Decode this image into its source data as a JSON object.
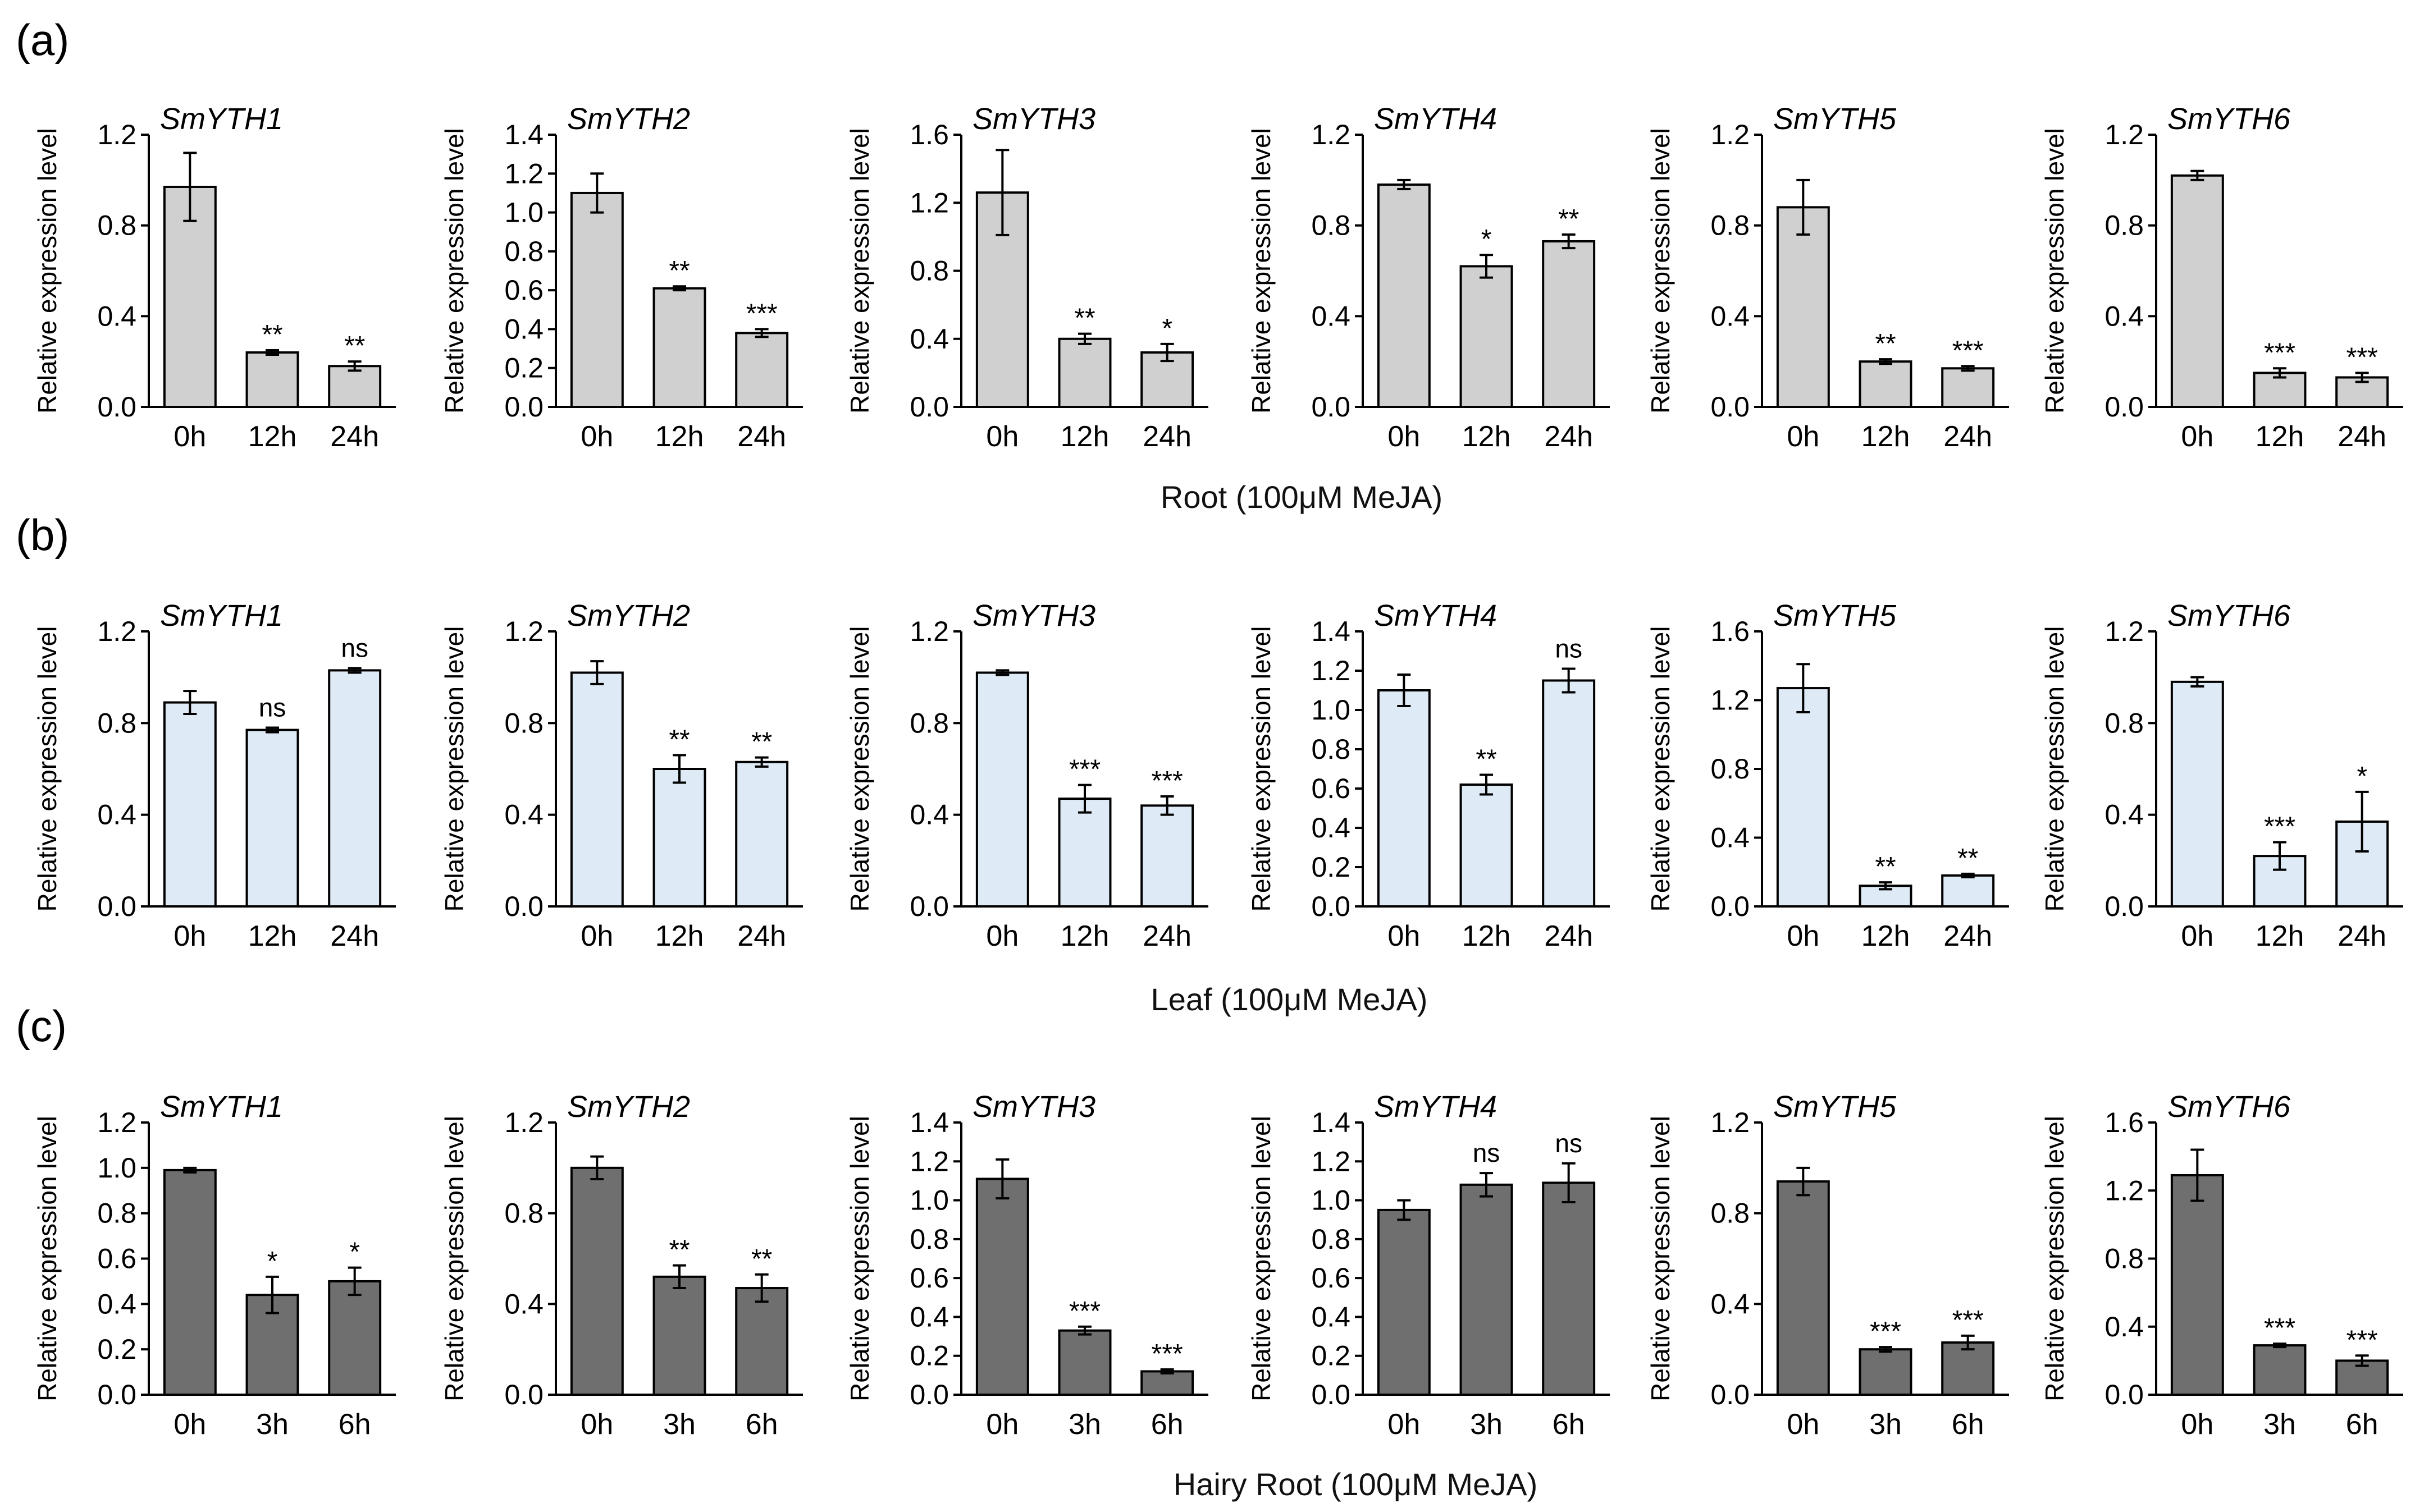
{
  "colors": {
    "root": "#d0d0d0",
    "leaf": "#deeaf5",
    "hairy": "#6f6f6f"
  },
  "panels": [
    {
      "letter": "(a)",
      "caption": "Root (100μM MeJA)",
      "color": "#d0d0d0",
      "categories": [
        "0h",
        "12h",
        "24h"
      ]
    },
    {
      "letter": "(b)",
      "caption": "Leaf (100μM MeJA)",
      "color": "#deeaf5",
      "categories": [
        "0h",
        "12h",
        "24h"
      ]
    },
    {
      "letter": "(c)",
      "caption": "Hairy Root (100μM MeJA)",
      "color": "#6f6f6f",
      "categories": [
        "0h",
        "3h",
        "6h"
      ]
    }
  ],
  "chart_data": [
    {
      "type": "bar",
      "panel": "a",
      "title": "SmYTH1",
      "ylabel": "Relative expression level",
      "xlabel": "Root (100μM MeJA)",
      "categories": [
        "0h",
        "12h",
        "24h"
      ],
      "values": [
        0.97,
        0.24,
        0.18
      ],
      "errors": [
        0.15,
        0.01,
        0.02
      ],
      "significance": [
        "",
        "**",
        "**"
      ],
      "ylim": [
        0,
        1.2
      ],
      "yticks": [
        "0.0",
        "0.4",
        "0.8",
        "1.2"
      ]
    },
    {
      "type": "bar",
      "panel": "a",
      "title": "SmYTH2",
      "ylabel": "Relative expression level",
      "xlabel": "Root (100μM MeJA)",
      "categories": [
        "0h",
        "12h",
        "24h"
      ],
      "values": [
        1.1,
        0.61,
        0.38
      ],
      "errors": [
        0.1,
        0.01,
        0.02
      ],
      "significance": [
        "",
        "**",
        "***"
      ],
      "ylim": [
        0,
        1.4
      ],
      "yticks": [
        "0.0",
        "0.2",
        "0.4",
        "0.6",
        "0.8",
        "1.0",
        "1.2",
        "1.4"
      ]
    },
    {
      "type": "bar",
      "panel": "a",
      "title": "SmYTH3",
      "ylabel": "Relative expression level",
      "xlabel": "Root (100μM MeJA)",
      "categories": [
        "0h",
        "12h",
        "24h"
      ],
      "values": [
        1.26,
        0.4,
        0.32
      ],
      "errors": [
        0.25,
        0.03,
        0.05
      ],
      "significance": [
        "",
        "**",
        "*"
      ],
      "ylim": [
        0,
        1.6
      ],
      "yticks": [
        "0.0",
        "0.4",
        "0.8",
        "1.2",
        "1.6"
      ]
    },
    {
      "type": "bar",
      "panel": "a",
      "title": "SmYTH4",
      "ylabel": "Relative expression level",
      "xlabel": "Root (100μM MeJA)",
      "categories": [
        "0h",
        "12h",
        "24h"
      ],
      "values": [
        0.98,
        0.62,
        0.73
      ],
      "errors": [
        0.02,
        0.05,
        0.03
      ],
      "significance": [
        "",
        "*",
        "**"
      ],
      "ylim": [
        0,
        1.2
      ],
      "yticks": [
        "0.0",
        "0.4",
        "0.8",
        "1.2"
      ]
    },
    {
      "type": "bar",
      "panel": "a",
      "title": "SmYTH5",
      "ylabel": "Relative expression level",
      "xlabel": "Root (100μM MeJA)",
      "categories": [
        "0h",
        "12h",
        "24h"
      ],
      "values": [
        0.88,
        0.2,
        0.17
      ],
      "errors": [
        0.12,
        0.01,
        0.01
      ],
      "significance": [
        "",
        "**",
        "***"
      ],
      "ylim": [
        0,
        1.2
      ],
      "yticks": [
        "0.0",
        "0.4",
        "0.8",
        "1.2"
      ]
    },
    {
      "type": "bar",
      "panel": "a",
      "title": "SmYTH6",
      "ylabel": "Relative expression level",
      "xlabel": "Root (100μM MeJA)",
      "categories": [
        "0h",
        "12h",
        "24h"
      ],
      "values": [
        1.02,
        0.15,
        0.13
      ],
      "errors": [
        0.02,
        0.02,
        0.02
      ],
      "significance": [
        "",
        "***",
        "***"
      ],
      "ylim": [
        0,
        1.2
      ],
      "yticks": [
        "0.0",
        "0.4",
        "0.8",
        "1.2"
      ]
    },
    {
      "type": "bar",
      "panel": "b",
      "title": "SmYTH1",
      "ylabel": "Relative expression level",
      "xlabel": "Leaf (100μM MeJA)",
      "categories": [
        "0h",
        "12h",
        "24h"
      ],
      "values": [
        0.89,
        0.77,
        1.03
      ],
      "errors": [
        0.05,
        0.01,
        0.01
      ],
      "significance": [
        "",
        "ns",
        "ns"
      ],
      "ylim": [
        0,
        1.2
      ],
      "yticks": [
        "0.0",
        "0.4",
        "0.8",
        "1.2"
      ]
    },
    {
      "type": "bar",
      "panel": "b",
      "title": "SmYTH2",
      "ylabel": "Relative expression level",
      "xlabel": "Leaf (100μM MeJA)",
      "categories": [
        "0h",
        "12h",
        "24h"
      ],
      "values": [
        1.02,
        0.6,
        0.63
      ],
      "errors": [
        0.05,
        0.06,
        0.02
      ],
      "significance": [
        "",
        "**",
        "**"
      ],
      "ylim": [
        0,
        1.2
      ],
      "yticks": [
        "0.0",
        "0.4",
        "0.8",
        "1.2"
      ]
    },
    {
      "type": "bar",
      "panel": "b",
      "title": "SmYTH3",
      "ylabel": "Relative expression level",
      "xlabel": "Leaf (100μM MeJA)",
      "categories": [
        "0h",
        "12h",
        "24h"
      ],
      "values": [
        1.02,
        0.47,
        0.44
      ],
      "errors": [
        0.01,
        0.06,
        0.04
      ],
      "significance": [
        "",
        "***",
        "***"
      ],
      "ylim": [
        0,
        1.2
      ],
      "yticks": [
        "0.0",
        "0.4",
        "0.8",
        "1.2"
      ]
    },
    {
      "type": "bar",
      "panel": "b",
      "title": "SmYTH4",
      "ylabel": "Relative expression level",
      "xlabel": "Leaf (100μM MeJA)",
      "categories": [
        "0h",
        "12h",
        "24h"
      ],
      "values": [
        1.1,
        0.62,
        1.15
      ],
      "errors": [
        0.08,
        0.05,
        0.06
      ],
      "significance": [
        "",
        "**",
        "ns"
      ],
      "ylim": [
        0,
        1.4
      ],
      "yticks": [
        "0.0",
        "0.2",
        "0.4",
        "0.6",
        "0.8",
        "1.0",
        "1.2",
        "1.4"
      ]
    },
    {
      "type": "bar",
      "panel": "b",
      "title": "SmYTH5",
      "ylabel": "Relative expression level",
      "xlabel": "Leaf (100μM MeJA)",
      "categories": [
        "0h",
        "12h",
        "24h"
      ],
      "values": [
        1.27,
        0.12,
        0.18
      ],
      "errors": [
        0.14,
        0.02,
        0.01
      ],
      "significance": [
        "",
        "**",
        "**"
      ],
      "ylim": [
        0,
        1.6
      ],
      "yticks": [
        "0.0",
        "0.4",
        "0.8",
        "1.2",
        "1.6"
      ]
    },
    {
      "type": "bar",
      "panel": "b",
      "title": "SmYTH6",
      "ylabel": "Relative expression level",
      "xlabel": "Leaf (100μM MeJA)",
      "categories": [
        "0h",
        "12h",
        "24h"
      ],
      "values": [
        0.98,
        0.22,
        0.37
      ],
      "errors": [
        0.02,
        0.06,
        0.13
      ],
      "significance": [
        "",
        "***",
        "*"
      ],
      "ylim": [
        0,
        1.2
      ],
      "yticks": [
        "0.0",
        "0.4",
        "0.8",
        "1.2"
      ]
    },
    {
      "type": "bar",
      "panel": "c",
      "title": "SmYTH1",
      "ylabel": "Relative expression level",
      "xlabel": "Hairy Root (100μM MeJA)",
      "categories": [
        "0h",
        "3h",
        "6h"
      ],
      "values": [
        0.99,
        0.44,
        0.5
      ],
      "errors": [
        0.01,
        0.08,
        0.06
      ],
      "significance": [
        "",
        "*",
        "*"
      ],
      "ylim": [
        0,
        1.2
      ],
      "yticks": [
        "0.0",
        "0.2",
        "0.4",
        "0.6",
        "0.8",
        "1.0",
        "1.2"
      ]
    },
    {
      "type": "bar",
      "panel": "c",
      "title": "SmYTH2",
      "ylabel": "Relative expression level",
      "xlabel": "Hairy Root (100μM MeJA)",
      "categories": [
        "0h",
        "3h",
        "6h"
      ],
      "values": [
        1.0,
        0.52,
        0.47
      ],
      "errors": [
        0.05,
        0.05,
        0.06
      ],
      "significance": [
        "",
        "**",
        "**"
      ],
      "ylim": [
        0,
        1.2
      ],
      "yticks": [
        "0.0",
        "0.4",
        "0.8",
        "1.2"
      ]
    },
    {
      "type": "bar",
      "panel": "c",
      "title": "SmYTH3",
      "ylabel": "Relative expression level",
      "xlabel": "Hairy Root (100μM MeJA)",
      "categories": [
        "0h",
        "3h",
        "6h"
      ],
      "values": [
        1.11,
        0.33,
        0.12
      ],
      "errors": [
        0.1,
        0.02,
        0.01
      ],
      "significance": [
        "",
        "***",
        "***"
      ],
      "ylim": [
        0,
        1.4
      ],
      "yticks": [
        "0.0",
        "0.2",
        "0.4",
        "0.6",
        "0.8",
        "1.0",
        "1.2",
        "1.4"
      ]
    },
    {
      "type": "bar",
      "panel": "c",
      "title": "SmYTH4",
      "ylabel": "Relative expression level",
      "xlabel": "Hairy Root (100μM MeJA)",
      "categories": [
        "0h",
        "3h",
        "6h"
      ],
      "values": [
        0.95,
        1.08,
        1.09
      ],
      "errors": [
        0.05,
        0.06,
        0.1
      ],
      "significance": [
        "",
        "ns",
        "ns"
      ],
      "ylim": [
        0,
        1.4
      ],
      "yticks": [
        "0.0",
        "0.2",
        "0.4",
        "0.6",
        "0.8",
        "1.0",
        "1.2",
        "1.4"
      ]
    },
    {
      "type": "bar",
      "panel": "c",
      "title": "SmYTH5",
      "ylabel": "Relative expression level",
      "xlabel": "Hairy Root (100μM MeJA)",
      "categories": [
        "0h",
        "3h",
        "6h"
      ],
      "values": [
        0.94,
        0.2,
        0.23
      ],
      "errors": [
        0.06,
        0.01,
        0.03
      ],
      "significance": [
        "",
        "***",
        "***"
      ],
      "ylim": [
        0,
        1.2
      ],
      "yticks": [
        "0.0",
        "0.4",
        "0.8",
        "1.2"
      ]
    },
    {
      "type": "bar",
      "panel": "c",
      "title": "SmYTH6",
      "ylabel": "Relative expression level",
      "xlabel": "Hairy Root (100μM MeJA)",
      "categories": [
        "0h",
        "3h",
        "6h"
      ],
      "values": [
        1.29,
        0.29,
        0.2
      ],
      "errors": [
        0.15,
        0.01,
        0.03
      ],
      "significance": [
        "",
        "***",
        "***"
      ],
      "ylim": [
        0,
        1.6
      ],
      "yticks": [
        "0.0",
        "0.4",
        "0.8",
        "1.2",
        "1.6"
      ]
    }
  ]
}
